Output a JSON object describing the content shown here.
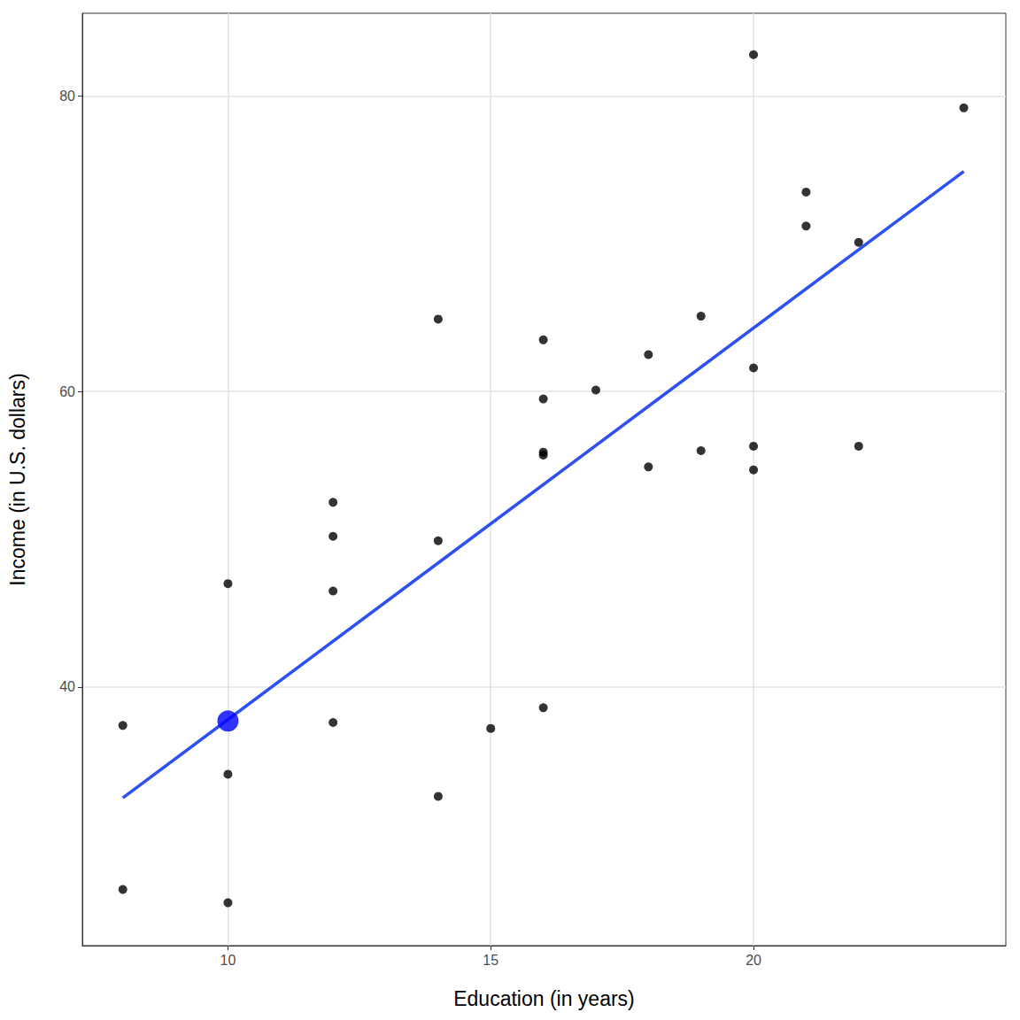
{
  "chart_data": {
    "type": "scatter",
    "x_label": "Education (in years)",
    "y_label": "Income (in U.S. dollars)",
    "x": [
      8,
      8,
      10,
      10,
      10,
      12,
      12,
      12,
      12,
      14,
      14,
      14,
      15,
      16,
      16,
      16,
      16,
      16,
      17,
      18,
      18,
      19,
      19,
      20,
      20,
      20,
      20,
      21,
      21,
      22,
      22,
      24
    ],
    "values": [
      37.4,
      26.3,
      47.0,
      34.1,
      25.4,
      52.5,
      50.2,
      46.5,
      37.6,
      64.9,
      49.9,
      32.6,
      37.2,
      63.5,
      59.5,
      55.9,
      55.7,
      38.6,
      60.1,
      62.5,
      54.9,
      65.1,
      56.0,
      82.8,
      61.6,
      56.3,
      54.7,
      73.5,
      71.2,
      70.1,
      56.3,
      79.2
    ],
    "color": "#000000",
    "fit_line": {
      "x": [
        8,
        24
      ],
      "values": [
        32.5,
        74.9
      ],
      "color": "#2e4ff2"
    },
    "highlight": {
      "x": 10,
      "y": 37.7,
      "color": "#0000ff"
    },
    "xlim": [
      7.23,
      24.8
    ],
    "ylim": [
      22.5,
      85.6
    ],
    "xticks": [
      10,
      15,
      20
    ],
    "yticks": [
      40,
      60,
      80
    ],
    "grid": true
  }
}
